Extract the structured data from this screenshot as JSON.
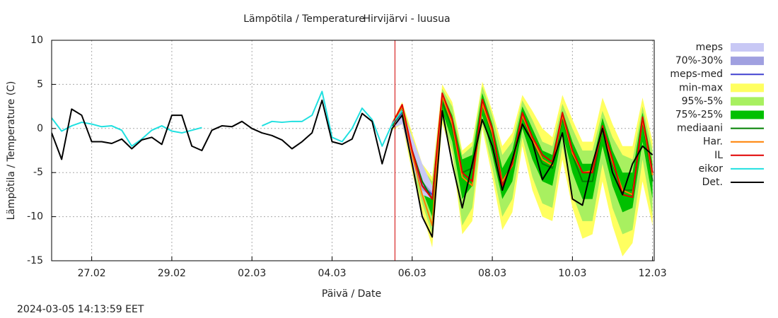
{
  "chart_data": {
    "type": "line",
    "title": "Lämpötila / Temperature",
    "subtitle": "Hirvijärvi - luusua",
    "xlabel": "Päivä / Date",
    "ylabel": "Lämpötila / Temperature (C)",
    "timestamp": "2024-03-05 14:13:59 EET",
    "grid": true,
    "legend": "right",
    "now_line": {
      "x": "2024-03-05T13:40",
      "color": "#d00000"
    },
    "xlim": [
      "2024-02-26T00:00",
      "2024-03-12T01:00"
    ],
    "xticks": [
      {
        "value": "2024-02-27T00:00",
        "label": "27.02"
      },
      {
        "value": "2024-02-29T00:00",
        "label": "29.02"
      },
      {
        "value": "2024-03-02T00:00",
        "label": "02.03"
      },
      {
        "value": "2024-03-04T00:00",
        "label": "04.03"
      },
      {
        "value": "2024-03-06T00:00",
        "label": "06.03"
      },
      {
        "value": "2024-03-08T00:00",
        "label": "08.03"
      },
      {
        "value": "2024-03-10T00:00",
        "label": "10.03"
      },
      {
        "value": "2024-03-12T00:00",
        "label": "12.03"
      }
    ],
    "ylim": [
      -15,
      10
    ],
    "yticks": [
      -15,
      -10,
      -5,
      0,
      5,
      10
    ],
    "x": [
      "2024-02-26T00:00",
      "2024-02-26T06:00",
      "2024-02-26T12:00",
      "2024-02-26T18:00",
      "2024-02-27T00:00",
      "2024-02-27T06:00",
      "2024-02-27T12:00",
      "2024-02-27T18:00",
      "2024-02-28T00:00",
      "2024-02-28T06:00",
      "2024-02-28T12:00",
      "2024-02-28T18:00",
      "2024-02-29T00:00",
      "2024-02-29T06:00",
      "2024-02-29T12:00",
      "2024-02-29T18:00",
      "2024-03-01T00:00",
      "2024-03-01T06:00",
      "2024-03-01T12:00",
      "2024-03-01T18:00",
      "2024-03-02T00:00",
      "2024-03-02T06:00",
      "2024-03-02T12:00",
      "2024-03-02T18:00",
      "2024-03-03T00:00",
      "2024-03-03T06:00",
      "2024-03-03T12:00",
      "2024-03-03T18:00",
      "2024-03-04T00:00",
      "2024-03-04T06:00",
      "2024-03-04T12:00",
      "2024-03-04T18:00",
      "2024-03-05T00:00",
      "2024-03-05T06:00",
      "2024-03-05T12:00",
      "2024-03-05T18:00",
      "2024-03-06T00:00",
      "2024-03-06T06:00",
      "2024-03-06T12:00",
      "2024-03-06T18:00",
      "2024-03-07T00:00",
      "2024-03-07T06:00",
      "2024-03-07T12:00",
      "2024-03-07T18:00",
      "2024-03-08T00:00",
      "2024-03-08T06:00",
      "2024-03-08T12:00",
      "2024-03-08T18:00",
      "2024-03-09T00:00",
      "2024-03-09T06:00",
      "2024-03-09T12:00",
      "2024-03-09T18:00",
      "2024-03-10T00:00",
      "2024-03-10T06:00",
      "2024-03-10T12:00",
      "2024-03-10T18:00",
      "2024-03-11T00:00",
      "2024-03-11T06:00",
      "2024-03-11T12:00",
      "2024-03-11T18:00",
      "2024-03-12T00:00"
    ],
    "series": [
      {
        "name": "meps",
        "color": "#c8c8f5",
        "kind": "band",
        "low": [
          null,
          null,
          null,
          null,
          null,
          null,
          null,
          null,
          null,
          null,
          null,
          null,
          null,
          null,
          null,
          null,
          null,
          null,
          null,
          null,
          null,
          null,
          null,
          null,
          null,
          null,
          null,
          null,
          null,
          null,
          null,
          null,
          null,
          null,
          0,
          0.5,
          -4,
          -7.5,
          -8,
          null,
          null,
          null,
          null,
          null,
          null,
          null,
          null,
          null,
          null,
          null,
          null,
          null,
          null,
          null,
          null,
          null,
          null,
          null,
          null,
          null,
          null
        ],
        "high": [
          null,
          null,
          null,
          null,
          null,
          null,
          null,
          null,
          null,
          null,
          null,
          null,
          null,
          null,
          null,
          null,
          null,
          null,
          null,
          null,
          null,
          null,
          null,
          null,
          null,
          null,
          null,
          null,
          null,
          null,
          null,
          null,
          null,
          null,
          0.8,
          2.2,
          -1,
          -4,
          -6.5,
          null,
          null,
          null,
          null,
          null,
          null,
          null,
          null,
          null,
          null,
          null,
          null,
          null,
          null,
          null,
          null,
          null,
          null,
          null,
          null,
          null,
          null
        ]
      },
      {
        "name": "70%-30%",
        "color": "#a0a0e0",
        "kind": "band",
        "low": [
          null,
          null,
          null,
          null,
          null,
          null,
          null,
          null,
          null,
          null,
          null,
          null,
          null,
          null,
          null,
          null,
          null,
          null,
          null,
          null,
          null,
          null,
          null,
          null,
          null,
          null,
          null,
          null,
          null,
          null,
          null,
          null,
          null,
          null,
          0.2,
          1.5,
          -3.3,
          -7,
          -7.7,
          null,
          null,
          null,
          null,
          null,
          null,
          null,
          null,
          null,
          null,
          null,
          null,
          null,
          null,
          null,
          null,
          null,
          null,
          null,
          null,
          null,
          null
        ],
        "high": [
          null,
          null,
          null,
          null,
          null,
          null,
          null,
          null,
          null,
          null,
          null,
          null,
          null,
          null,
          null,
          null,
          null,
          null,
          null,
          null,
          null,
          null,
          null,
          null,
          null,
          null,
          null,
          null,
          null,
          null,
          null,
          null,
          null,
          null,
          0.6,
          2,
          -2.2,
          -6,
          -7.2,
          null,
          null,
          null,
          null,
          null,
          null,
          null,
          null,
          null,
          null,
          null,
          null,
          null,
          null,
          null,
          null,
          null,
          null,
          null,
          null,
          null,
          null
        ]
      },
      {
        "name": "meps-med",
        "color": "#4040d0",
        "kind": "line",
        "values": [
          null,
          null,
          null,
          null,
          null,
          null,
          null,
          null,
          null,
          null,
          null,
          null,
          null,
          null,
          null,
          null,
          null,
          null,
          null,
          null,
          null,
          null,
          null,
          null,
          null,
          null,
          null,
          null,
          null,
          null,
          null,
          null,
          null,
          null,
          0.4,
          1.8,
          -2.8,
          -6.5,
          -7.5,
          null,
          null,
          null,
          null,
          null,
          null,
          null,
          null,
          null,
          null,
          null,
          null,
          null,
          null,
          null,
          null,
          null,
          null,
          null,
          null,
          null,
          null
        ]
      },
      {
        "name": "min-max",
        "color": "#ffff60",
        "kind": "band",
        "low": [
          null,
          null,
          null,
          null,
          null,
          null,
          null,
          null,
          null,
          null,
          null,
          null,
          null,
          null,
          null,
          null,
          null,
          null,
          null,
          null,
          null,
          null,
          null,
          null,
          null,
          null,
          null,
          null,
          null,
          null,
          null,
          null,
          null,
          null,
          -0.2,
          0.5,
          -5,
          -9.5,
          -13.5,
          0.5,
          -3,
          -12,
          -10.5,
          0,
          -5.5,
          -11.5,
          -9.5,
          -2,
          -7,
          -10,
          -10.5,
          -3.5,
          -9,
          -12.5,
          -12,
          -6,
          -11,
          -14.5,
          -13,
          -6,
          -11
        ],
        "high": [
          null,
          null,
          null,
          null,
          null,
          null,
          null,
          null,
          null,
          null,
          null,
          null,
          null,
          null,
          null,
          null,
          null,
          null,
          null,
          null,
          null,
          null,
          null,
          null,
          null,
          null,
          null,
          null,
          null,
          null,
          null,
          null,
          null,
          null,
          0.8,
          3,
          -0.5,
          -4,
          -5.5,
          5,
          3,
          -2.5,
          -1.5,
          5.3,
          2,
          -2,
          -0.5,
          3.8,
          2,
          0,
          -1,
          3.8,
          1,
          -1.5,
          -1.5,
          3.5,
          0.5,
          -2,
          -2,
          3.5,
          -1.5
        ]
      },
      {
        "name": "95%-5%",
        "color": "#a8f060",
        "kind": "band",
        "low": [
          null,
          null,
          null,
          null,
          null,
          null,
          null,
          null,
          null,
          null,
          null,
          null,
          null,
          null,
          null,
          null,
          null,
          null,
          null,
          null,
          null,
          null,
          null,
          null,
          null,
          null,
          null,
          null,
          null,
          null,
          null,
          null,
          null,
          null,
          0,
          1,
          -4.5,
          -8.5,
          -12,
          1,
          -2.5,
          -11,
          -9,
          0.5,
          -4.5,
          -10,
          -8,
          -1,
          -5.5,
          -8.5,
          -9,
          -2,
          -7.5,
          -10.5,
          -10.5,
          -4,
          -9,
          -12,
          -11.5,
          -3.5,
          -10
        ],
        "high": [
          null,
          null,
          null,
          null,
          null,
          null,
          null,
          null,
          null,
          null,
          null,
          null,
          null,
          null,
          null,
          null,
          null,
          null,
          null,
          null,
          null,
          null,
          null,
          null,
          null,
          null,
          null,
          null,
          null,
          null,
          null,
          null,
          null,
          null,
          0.6,
          2.8,
          -1,
          -4.5,
          -6,
          4.5,
          2.5,
          -3,
          -2,
          4.8,
          1.5,
          -3,
          -1.5,
          3.2,
          1,
          -1.5,
          -2,
          2.8,
          0,
          -2.5,
          -2.5,
          2,
          -1,
          -3,
          -3.5,
          2.5,
          -2.5
        ]
      },
      {
        "name": "75%-25%",
        "color": "#00c000",
        "kind": "band",
        "low": [
          null,
          null,
          null,
          null,
          null,
          null,
          null,
          null,
          null,
          null,
          null,
          null,
          null,
          null,
          null,
          null,
          null,
          null,
          null,
          null,
          null,
          null,
          null,
          null,
          null,
          null,
          null,
          null,
          null,
          null,
          null,
          null,
          null,
          null,
          0.1,
          1.5,
          -3.5,
          -7,
          -10,
          2,
          -1.5,
          -8,
          -6.5,
          1.5,
          -3,
          -8,
          -6,
          0,
          -3.5,
          -6,
          -6.5,
          -0.5,
          -5,
          -8,
          -8,
          -2,
          -6.5,
          -9.5,
          -9,
          -1.5,
          -8
        ],
        "high": [
          null,
          null,
          null,
          null,
          null,
          null,
          null,
          null,
          null,
          null,
          null,
          null,
          null,
          null,
          null,
          null,
          null,
          null,
          null,
          null,
          null,
          null,
          null,
          null,
          null,
          null,
          null,
          null,
          null,
          null,
          null,
          null,
          null,
          null,
          0.5,
          2.5,
          -1.5,
          -5,
          -7,
          4,
          1.5,
          -3.5,
          -3,
          4,
          0.5,
          -4.5,
          -2.5,
          2.5,
          0,
          -2.5,
          -3,
          2,
          -1.5,
          -4,
          -4,
          1.2,
          -2.5,
          -5,
          -5,
          1.8,
          -4
        ]
      },
      {
        "name": "mediaani",
        "color": "#008000",
        "kind": "line",
        "values": [
          null,
          null,
          null,
          null,
          null,
          null,
          null,
          null,
          null,
          null,
          null,
          null,
          null,
          null,
          null,
          null,
          null,
          null,
          null,
          null,
          null,
          null,
          null,
          null,
          null,
          null,
          null,
          null,
          null,
          null,
          null,
          null,
          null,
          null,
          0.3,
          2,
          -2.5,
          -6,
          -8,
          3,
          0,
          -5,
          -4.5,
          3,
          -1,
          -6,
          -4,
          1.5,
          -1.5,
          -4,
          -4.5,
          1.2,
          -3,
          -6,
          -6,
          0,
          -4,
          -7,
          -7,
          0.8,
          -6
        ]
      },
      {
        "name": "Har.",
        "color": "#ff8000",
        "kind": "line",
        "values": [
          null,
          null,
          null,
          null,
          null,
          null,
          null,
          null,
          null,
          null,
          null,
          null,
          null,
          null,
          null,
          null,
          null,
          null,
          null,
          null,
          null,
          null,
          null,
          null,
          null,
          null,
          null,
          null,
          null,
          null,
          null,
          null,
          null,
          null,
          0.5,
          2.5,
          -3,
          -7.5,
          -11,
          3.7,
          0.5,
          -5.5,
          -6.5,
          2.8,
          -0.5,
          -6,
          -4.2,
          1.5,
          -1.2,
          -3.5,
          -4.2,
          1.5,
          -2.8,
          -5,
          -4.8,
          0,
          -3.8,
          -7,
          -7.5,
          1,
          -5.3
        ]
      },
      {
        "name": "IL",
        "color": "#e00000",
        "kind": "line",
        "values": [
          null,
          null,
          null,
          null,
          null,
          null,
          null,
          null,
          null,
          null,
          null,
          null,
          null,
          null,
          null,
          null,
          null,
          null,
          null,
          null,
          null,
          null,
          null,
          null,
          null,
          null,
          null,
          null,
          null,
          null,
          null,
          null,
          null,
          null,
          0.5,
          2.7,
          -2.5,
          -6.5,
          -8,
          4,
          1,
          -5,
          -6,
          3.3,
          0,
          -6.5,
          -4,
          1.8,
          -1,
          -3,
          -3.8,
          1.8,
          -2.5,
          -5,
          -5,
          0.3,
          -3.5,
          -7.5,
          -7.8,
          1.3,
          -5
        ]
      },
      {
        "name": "eikor",
        "color": "#20e0e0",
        "kind": "line",
        "values": [
          1.2,
          -0.3,
          0.3,
          0.7,
          0.5,
          0.2,
          0.3,
          -0.2,
          -2,
          -1.2,
          -0.2,
          0.3,
          -0.3,
          -0.5,
          -0.2,
          0.1,
          null,
          null,
          null,
          null,
          null,
          0.3,
          0.8,
          0.7,
          0.8,
          0.8,
          1.5,
          4.2,
          -1,
          -1.5,
          0,
          2.3,
          1,
          -2,
          0.5,
          2,
          null,
          null,
          null,
          null,
          null,
          null,
          null,
          null,
          null,
          null,
          null,
          null,
          null,
          null,
          null,
          null,
          null,
          null,
          null,
          null,
          null,
          null,
          null,
          null,
          null
        ]
      },
      {
        "name": "Det.",
        "color": "#000000",
        "kind": "line",
        "values": [
          -0.5,
          -3.5,
          2.2,
          1.5,
          -1.5,
          -1.5,
          -1.7,
          -1.2,
          -2.3,
          -1.3,
          -1,
          -1.8,
          1.5,
          1.5,
          -2,
          -2.5,
          -0.2,
          0.3,
          0.2,
          0.8,
          0,
          -0.5,
          -0.8,
          -1.3,
          -2.3,
          -1.5,
          -0.5,
          3.2,
          -1.5,
          -1.8,
          -1.2,
          1.7,
          0.8,
          -4,
          0,
          1.5,
          -4,
          -10,
          -12.3,
          2,
          -4,
          -9,
          -4,
          1,
          -2,
          -7,
          -3.5,
          0.5,
          -1.5,
          -5.8,
          -4,
          -0.5,
          -8,
          -8.7,
          -4,
          0,
          -5,
          -7.5,
          -4,
          -2,
          -3
        ]
      }
    ]
  }
}
